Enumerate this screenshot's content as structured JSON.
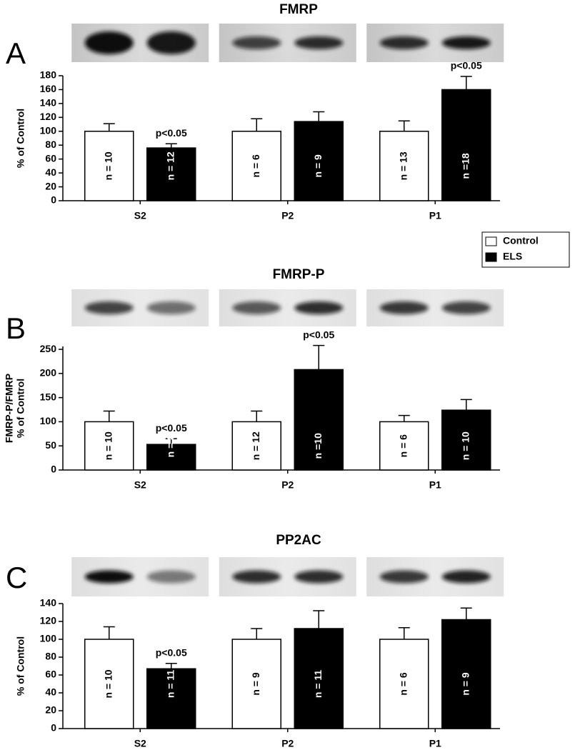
{
  "chart_data": [
    {
      "type": "bar",
      "panel_label": "A",
      "title": "FMRP",
      "ylabel": [
        "% of Control"
      ],
      "categories": [
        "S2",
        "P2",
        "P1"
      ],
      "series": [
        {
          "name": "Control",
          "color": "#ffffff",
          "values": [
            100,
            100,
            100
          ],
          "errors": [
            11,
            18,
            15
          ],
          "n_labels": [
            "n = 10",
            "n = 6",
            "n = 13"
          ],
          "annotations": [
            null,
            null,
            null
          ]
        },
        {
          "name": "ELS",
          "color": "#000000",
          "values": [
            76,
            114,
            160
          ],
          "errors": [
            6,
            14,
            19
          ],
          "n_labels": [
            "n = 12",
            "n = 9",
            "n =18"
          ],
          "annotations": [
            "p<0.05",
            null,
            "p<0.05"
          ]
        }
      ],
      "ylim": [
        0,
        180
      ],
      "yticks": [
        0,
        20,
        40,
        60,
        80,
        100,
        120,
        140,
        160,
        180
      ]
    },
    {
      "type": "bar",
      "panel_label": "B",
      "title": "FMRP-P",
      "ylabel": [
        "FMRP-P/FMRP",
        "% of Control"
      ],
      "categories": [
        "S2",
        "P2",
        "P1"
      ],
      "series": [
        {
          "name": "Control",
          "color": "#ffffff",
          "values": [
            100,
            100,
            100
          ],
          "errors": [
            22,
            22,
            13
          ],
          "n_labels": [
            "n = 10",
            "n = 12",
            "n = 6"
          ],
          "annotations": [
            null,
            null,
            null
          ]
        },
        {
          "name": "ELS",
          "color": "#000000",
          "values": [
            53,
            208,
            124
          ],
          "errors": [
            12,
            50,
            22
          ],
          "n_labels": [
            "n = 8",
            "n =10",
            "n = 10"
          ],
          "annotations": [
            "p<0.05",
            "p<0.05",
            null
          ]
        }
      ],
      "ylim": [
        0,
        256
      ],
      "yticks": [
        0,
        50,
        100,
        150,
        200,
        250
      ]
    },
    {
      "type": "bar",
      "panel_label": "C",
      "title": "PP2AC",
      "ylabel": [
        "% of Control"
      ],
      "categories": [
        "S2",
        "P2",
        "P1"
      ],
      "series": [
        {
          "name": "Control",
          "color": "#ffffff",
          "values": [
            100,
            100,
            100
          ],
          "errors": [
            14,
            12,
            13
          ],
          "n_labels": [
            "n = 10",
            "n = 9",
            "n = 6"
          ],
          "annotations": [
            null,
            null,
            null
          ]
        },
        {
          "name": "ELS",
          "color": "#000000",
          "values": [
            67,
            112,
            122
          ],
          "errors": [
            6,
            20,
            13
          ],
          "n_labels": [
            "n = 11",
            "n = 11",
            "n = 9"
          ],
          "annotations": [
            "p<0.05",
            null,
            null
          ]
        }
      ],
      "ylim": [
        0,
        140
      ],
      "yticks": [
        0,
        20,
        40,
        60,
        80,
        100,
        120,
        140
      ]
    }
  ]
}
